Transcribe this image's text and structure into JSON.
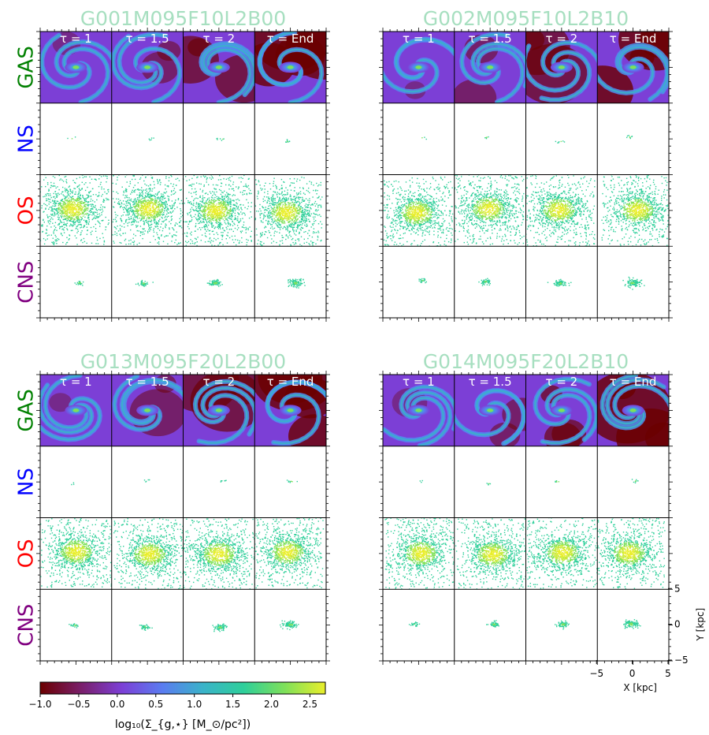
{
  "chart_data": {
    "type": "heatmap",
    "panels": [
      {
        "title": "G001M095F10L2B00",
        "seed": 11
      },
      {
        "title": "G002M095F10L2B10",
        "seed": 23
      },
      {
        "title": "G013M095F20L2B00",
        "seed": 37
      },
      {
        "title": "G014M095F20L2B10",
        "seed": 53
      }
    ],
    "title_color": "#a7dfc0",
    "rows": [
      {
        "label": "GAS",
        "color": "#008000"
      },
      {
        "label": "NS",
        "color": "#0000ff"
      },
      {
        "label": "OS",
        "color": "#ff0000"
      },
      {
        "label": "CNS",
        "color": "#800080"
      }
    ],
    "time_labels": [
      "τ = 1",
      "τ = 1.5",
      "τ = 2",
      "τ = End"
    ],
    "x_axis": {
      "label": "X [kpc]",
      "range": [
        -5,
        5
      ],
      "ticks": [
        "−5",
        "0",
        "5"
      ]
    },
    "y_axis": {
      "label": "Y [kpc]",
      "range": [
        -5,
        5
      ],
      "ticks": [
        "5",
        "0",
        "−5"
      ]
    },
    "colorbar": {
      "label": "log₁₀(Σ_{g,⋆}  [M_⊙/pc²])",
      "range": [
        -1.0,
        2.7
      ],
      "ticks": [
        "−1.0",
        "−0.5",
        "0.0",
        "0.5",
        "1.0",
        "1.5",
        "2.0",
        "2.5"
      ],
      "colors": [
        "#6b0000",
        "#7a1f6a",
        "#7c3fd6",
        "#5a7cf0",
        "#3ab3c9",
        "#2ecf9a",
        "#7ee05a",
        "#e9ee2b"
      ]
    }
  }
}
